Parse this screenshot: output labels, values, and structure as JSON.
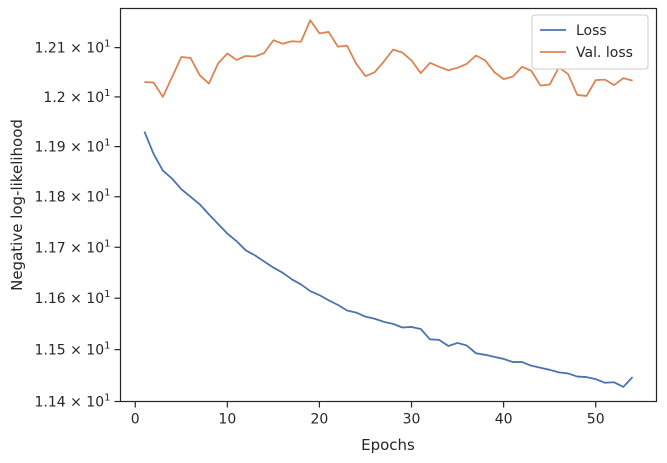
{
  "chart_data": {
    "type": "line",
    "xlabel": "Epochs",
    "ylabel": "Negative log-likelihood",
    "xlim": [
      -1.6,
      56.6
    ],
    "ylim": [
      11.4,
      12.18
    ],
    "y_scale": "log",
    "grid": false,
    "legend_position": "top-right",
    "x_ticks": [
      0,
      10,
      20,
      30,
      40,
      50
    ],
    "x_tick_labels": [
      "0",
      "10",
      "20",
      "30",
      "40",
      "50"
    ],
    "y_ticks": [
      11.4,
      11.5,
      11.6,
      11.7,
      11.8,
      11.9,
      12.0,
      12.1
    ],
    "y_tick_labels": [
      {
        "base": "1.14 × 10",
        "exp": "1"
      },
      {
        "base": "1.15 × 10",
        "exp": "1"
      },
      {
        "base": "1.16 × 10",
        "exp": "1"
      },
      {
        "base": "1.17 × 10",
        "exp": "1"
      },
      {
        "base": "1.18 × 10",
        "exp": "1"
      },
      {
        "base": "1.19 × 10",
        "exp": "1"
      },
      {
        "base": "1.2 × 10",
        "exp": "1"
      },
      {
        "base": "1.21 × 10",
        "exp": "1"
      }
    ],
    "x": [
      1,
      2,
      3,
      4,
      5,
      6,
      7,
      8,
      9,
      10,
      11,
      12,
      13,
      14,
      15,
      16,
      17,
      18,
      19,
      20,
      21,
      22,
      23,
      24,
      25,
      26,
      27,
      28,
      29,
      30,
      31,
      32,
      33,
      34,
      35,
      36,
      37,
      38,
      39,
      40,
      41,
      42,
      43,
      44,
      45,
      46,
      47,
      48,
      49,
      50,
      51,
      52,
      53,
      54
    ],
    "series": [
      {
        "name": "Loss",
        "color": "#4c72b0",
        "values": [
          11.93,
          11.885,
          11.852,
          11.836,
          11.815,
          11.8,
          11.785,
          11.765,
          11.746,
          11.727,
          11.712,
          11.694,
          11.684,
          11.672,
          11.66,
          11.65,
          11.637,
          11.627,
          11.614,
          11.606,
          11.596,
          11.587,
          11.576,
          11.572,
          11.564,
          11.56,
          11.554,
          11.55,
          11.543,
          11.544,
          11.54,
          11.52,
          11.519,
          11.507,
          11.513,
          11.508,
          11.493,
          11.49,
          11.486,
          11.482,
          11.476,
          11.476,
          11.469,
          11.465,
          11.461,
          11.456,
          11.454,
          11.448,
          11.447,
          11.443,
          11.436,
          11.437,
          11.428,
          11.447
        ]
      },
      {
        "name": "Val. loss",
        "color": "#dd8452",
        "values": [
          12.03,
          12.029,
          12.0,
          12.04,
          12.081,
          12.079,
          12.044,
          12.027,
          12.068,
          12.088,
          12.075,
          12.083,
          12.082,
          12.089,
          12.115,
          12.108,
          12.113,
          12.112,
          12.156,
          12.129,
          12.132,
          12.102,
          12.104,
          12.067,
          12.042,
          12.05,
          12.072,
          12.096,
          12.09,
          12.074,
          12.048,
          12.069,
          12.061,
          12.054,
          12.059,
          12.067,
          12.084,
          12.074,
          12.05,
          12.036,
          12.041,
          12.061,
          12.053,
          12.023,
          12.025,
          12.06,
          12.046,
          12.004,
          12.002,
          12.034,
          12.035,
          12.024,
          12.038,
          12.033
        ]
      }
    ]
  }
}
